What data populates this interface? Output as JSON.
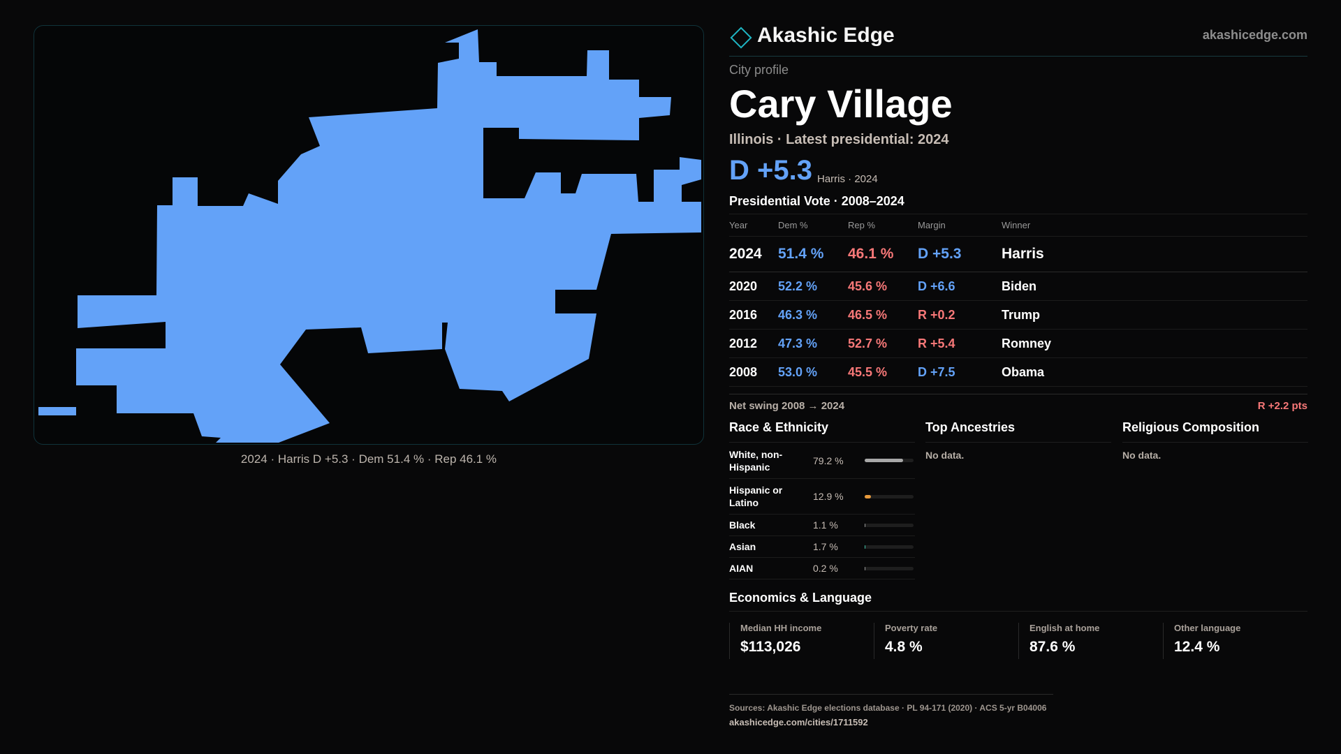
{
  "header": {
    "brand_name": "Akashic Edge",
    "brand_icon": "diamond-logo-icon",
    "brand_url": "akashicedge.com"
  },
  "map": {
    "fill_color": "#63a2f8",
    "caption": "2024 · Harris D +5.3 · Dem 51.4 % · Rep 46.1 %"
  },
  "profile": {
    "kicker": "City profile",
    "city": "Cary Village",
    "subtitle": "Illinois · Latest presidential: 2024",
    "margin": "D +5.3",
    "margin_note": "Harris · 2024"
  },
  "presidential": {
    "title": "Presidential Vote · 2008–2024",
    "columns": [
      "Year",
      "Dem %",
      "Rep %",
      "Margin",
      "Winner"
    ],
    "rows": [
      {
        "year": "2024",
        "dem": "51.4 %",
        "rep": "46.1 %",
        "margin": "D +5.3",
        "party": "D",
        "winner": "Harris"
      },
      {
        "year": "2020",
        "dem": "52.2 %",
        "rep": "45.6 %",
        "margin": "D +6.6",
        "party": "D",
        "winner": "Biden"
      },
      {
        "year": "2016",
        "dem": "46.3 %",
        "rep": "46.5 %",
        "margin": "R +0.2",
        "party": "R",
        "winner": "Trump"
      },
      {
        "year": "2012",
        "dem": "47.3 %",
        "rep": "52.7 %",
        "margin": "R +5.4",
        "party": "R",
        "winner": "Romney"
      },
      {
        "year": "2008",
        "dem": "53.0 %",
        "rep": "45.5 %",
        "margin": "D +7.5",
        "party": "D",
        "winner": "Obama"
      }
    ],
    "swing_label": "Net swing 2008 → 2024",
    "swing_value": "R +2.2 pts"
  },
  "race": {
    "title": "Race & Ethnicity",
    "rows": [
      {
        "label": "White, non-Hispanic",
        "value": "79.2 %",
        "fraction": 0.792,
        "color": "#a8a8a8"
      },
      {
        "label": "Hispanic or Latino",
        "value": "12.9 %",
        "fraction": 0.129,
        "color": "#e89a3c"
      },
      {
        "label": "Black",
        "value": "1.1 %",
        "fraction": 0.011,
        "color": "#9a9a9a"
      },
      {
        "label": "Asian",
        "value": "1.7 %",
        "fraction": 0.017,
        "color": "#3fc3a8"
      },
      {
        "label": "AIAN",
        "value": "0.2 %",
        "fraction": 0.002,
        "color": "#9a9a9a"
      }
    ]
  },
  "ancestries": {
    "title": "Top Ancestries",
    "empty": "No data."
  },
  "religion": {
    "title": "Religious Composition",
    "empty": "No data."
  },
  "economics": {
    "title": "Economics & Language",
    "stats": [
      {
        "label": "Median HH income",
        "value": "$113,026"
      },
      {
        "label": "Poverty rate",
        "value": "4.8 %"
      },
      {
        "label": "English at home",
        "value": "87.6 %"
      },
      {
        "label": "Other language",
        "value": "12.4 %"
      }
    ]
  },
  "footer": {
    "sources": "Sources: Akashic Edge elections database · PL 94-171 (2020) · ACS 5-yr B04006",
    "page_url": "akashicedge.com/cities/1711592"
  },
  "colors": {
    "dem": "#63a2f8",
    "rep": "#f77878",
    "accent": "#1fb6c4"
  }
}
